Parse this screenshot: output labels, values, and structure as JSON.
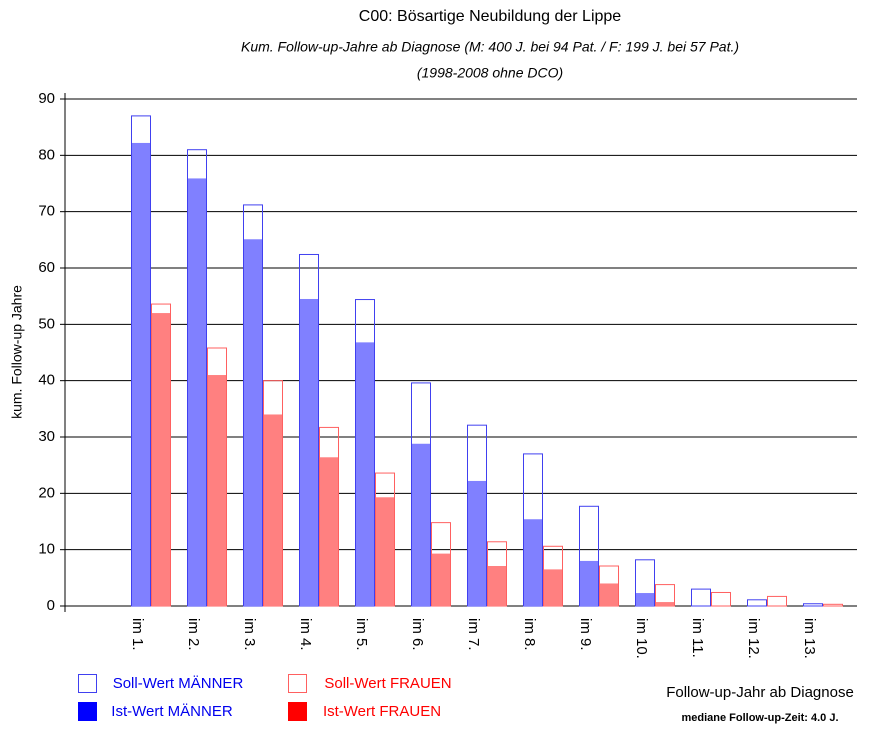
{
  "chart_data": {
    "type": "bar",
    "title": "C00: Bösartige Neubildung der Lippe",
    "subtitle": "Kum. Follow-up-Jahre ab Diagnose (M: 400 J. bei 94 Pat. / F:  199 J. bei   57 Pat.)",
    "subtitle2": "(1998-2008 ohne DCO)",
    "y_label": "kum. Follow-up Jahre",
    "x_label": "Follow-up-Jahr ab Diagnose",
    "note": "mediane Follow-up-Zeit: 4.0 J.",
    "categories": [
      "im 1.",
      "im 2.",
      "im 3.",
      "im 4.",
      "im 5.",
      "im 6.",
      "im 7.",
      "im 8.",
      "im 9.",
      "im 10.",
      "im 11.",
      "im 12.",
      "im 13."
    ],
    "series": [
      {
        "name": "Soll-Wert MÄNNER",
        "color": "#4040f0",
        "style": "outline",
        "values": [
          87,
          81,
          71.2,
          62.4,
          54.4,
          39.6,
          32.1,
          27,
          17.7,
          8.2,
          3,
          1.1,
          0.4
        ]
      },
      {
        "name": "Ist-Wert MÄNNER",
        "color": "#8080ff",
        "style": "filled",
        "values": [
          82.2,
          75.9,
          65.1,
          54.5,
          46.8,
          28.8,
          22.2,
          15.4,
          8,
          2.3,
          0,
          0,
          0
        ]
      },
      {
        "name": "Soll-Wert FRAUEN",
        "color": "#ff6060",
        "style": "outline",
        "values": [
          53.6,
          45.8,
          40,
          31.7,
          23.6,
          14.8,
          11.4,
          10.6,
          7.1,
          3.8,
          2.4,
          1.7,
          0.3
        ]
      },
      {
        "name": "Ist-Wert FRAUEN",
        "color": "#ff8080",
        "style": "filled",
        "values": [
          52,
          41,
          34,
          26.4,
          19.3,
          9.3,
          7.1,
          6.5,
          4,
          0.7,
          0,
          0,
          0
        ]
      }
    ],
    "ylim": [
      0,
      90
    ],
    "yticks": [
      0,
      10,
      20,
      30,
      40,
      50,
      60,
      70,
      80,
      90
    ],
    "grid": true
  }
}
